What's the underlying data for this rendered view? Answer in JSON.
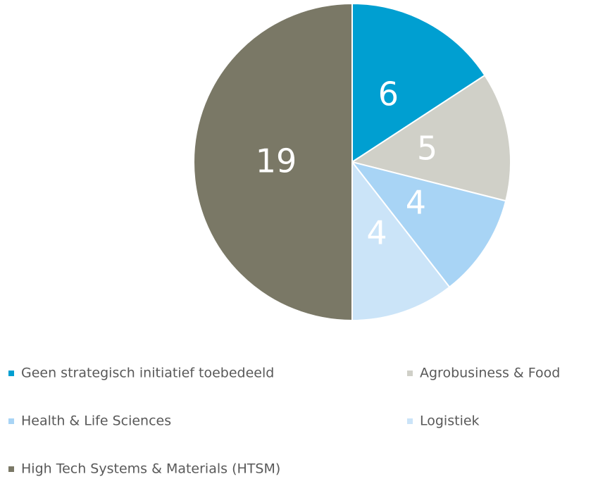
{
  "chart_data": {
    "type": "pie",
    "categories": [
      "Geen strategisch initiatief toebedeeld",
      "Agrobusiness & Food",
      "Health & Life Sciences",
      "Logistiek",
      "High Tech Systems & Materials (HTSM)"
    ],
    "values": [
      6,
      5,
      4,
      4,
      19
    ],
    "colors": [
      "#009fd1",
      "#d0d0c8",
      "#a8d4f5",
      "#cbe4f8",
      "#7a7866"
    ],
    "legend": "bottom"
  }
}
